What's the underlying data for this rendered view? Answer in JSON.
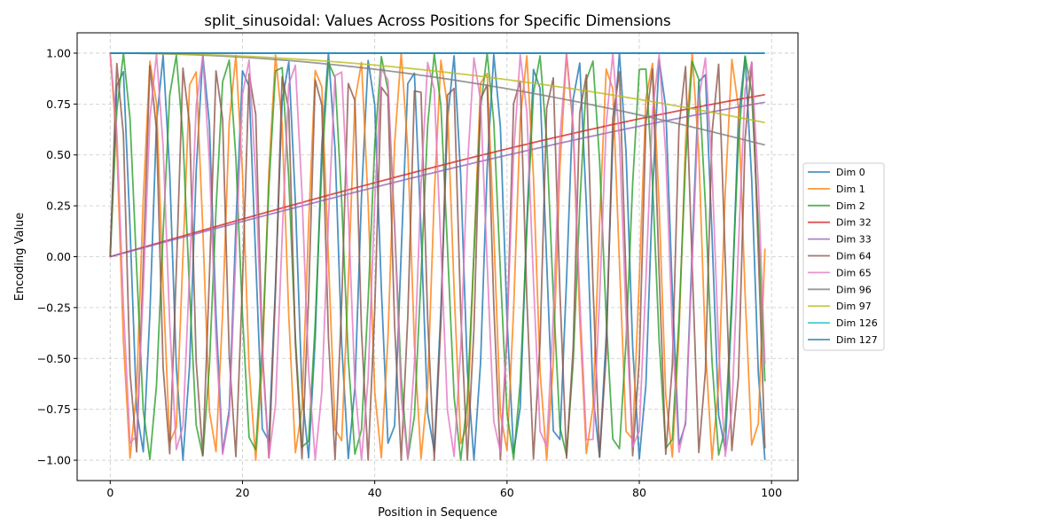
{
  "chart_data": {
    "type": "line",
    "title": "split_sinusoidal: Values Across Positions for Specific Dimensions",
    "xlabel": "Position in Sequence",
    "ylabel": "Encoding Value",
    "xlim": [
      -5,
      104
    ],
    "ylim": [
      -1.1,
      1.1
    ],
    "x_ticks": [
      0,
      20,
      40,
      60,
      80,
      100
    ],
    "x_tick_labels": [
      "0",
      "20",
      "40",
      "60",
      "80",
      "100"
    ],
    "y_ticks": [
      -1.0,
      -0.75,
      -0.5,
      -0.25,
      0.0,
      0.25,
      0.5,
      0.75,
      1.0
    ],
    "y_tick_labels": [
      "−1.00",
      "−0.75",
      "−0.50",
      "−0.25",
      "0.00",
      "0.25",
      "0.50",
      "0.75",
      "1.00"
    ],
    "grid": true,
    "legend_position": "center-right-outside",
    "positions": {
      "start": 0,
      "end": 99,
      "step": 1
    },
    "series": [
      {
        "name": "Dim 0",
        "color": "#1f77b4",
        "function": "sin",
        "frequency": 1.0
      },
      {
        "name": "Dim 1",
        "color": "#ff7f0e",
        "function": "cos",
        "frequency": 1.0
      },
      {
        "name": "Dim 2",
        "color": "#2ca02c",
        "function": "sin",
        "frequency": 0.8
      },
      {
        "name": "Dim 32",
        "color": "#d62728",
        "function": "sin",
        "frequency": 0.0093
      },
      {
        "name": "Dim 33",
        "color": "#9467bd",
        "function": "sin",
        "frequency": 0.0087
      },
      {
        "name": "Dim 64",
        "color": "#8c564b",
        "function": "sin",
        "frequency": 1.25
      },
      {
        "name": "Dim 65",
        "color": "#e377c2",
        "function": "cos",
        "frequency": 0.91
      },
      {
        "name": "Dim 96",
        "color": "#7f7f7f",
        "function": "cos",
        "frequency": 0.01
      },
      {
        "name": "Dim 97",
        "color": "#bcbd22",
        "function": "cos",
        "frequency": 0.0086
      },
      {
        "name": "Dim 126",
        "color": "#17becf",
        "function": "cos",
        "frequency": 0.0001
      },
      {
        "name": "Dim 127",
        "color": "#1f77b4",
        "function": "cos",
        "frequency": 0.0001
      }
    ]
  }
}
